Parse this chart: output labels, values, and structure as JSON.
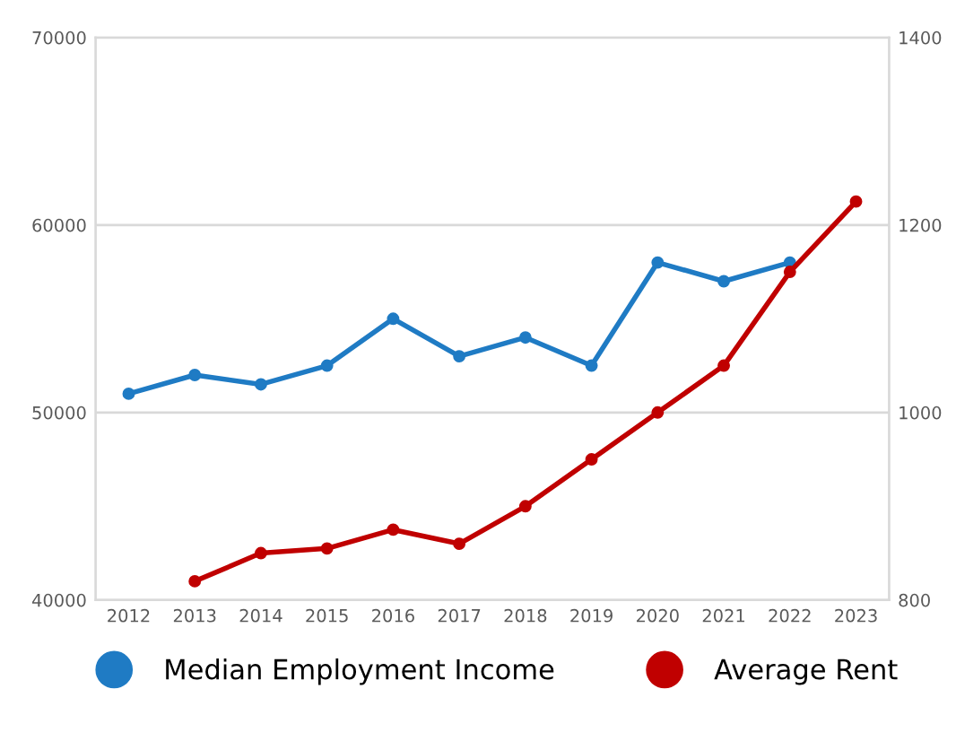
{
  "chart_data": {
    "type": "line",
    "categories": [
      "2012",
      "2013",
      "2014",
      "2015",
      "2016",
      "2017",
      "2018",
      "2019",
      "2020",
      "2021",
      "2022",
      "2023"
    ],
    "series": [
      {
        "name": "Median Employment Income",
        "color": "#1f7bc4",
        "values": [
          51000,
          52000,
          51500,
          52500,
          55000,
          53000,
          54000,
          52500,
          58000,
          57000,
          58000,
          null
        ]
      },
      {
        "name": "Average Rent",
        "color": "#c00000",
        "axis": "y2",
        "values": [
          null,
          820,
          850,
          855,
          875,
          860,
          900,
          950,
          1000,
          1050,
          1150,
          1225
        ]
      }
    ],
    "ylim": [
      40000,
      70000
    ],
    "yticks": [
      40000,
      50000,
      60000,
      70000
    ],
    "y2lim": [
      800,
      1400
    ],
    "y2ticks": [
      800,
      1000,
      1200,
      1400
    ],
    "grid": "y",
    "legend": "bottom",
    "marker": "circle",
    "line_style": "solid"
  }
}
